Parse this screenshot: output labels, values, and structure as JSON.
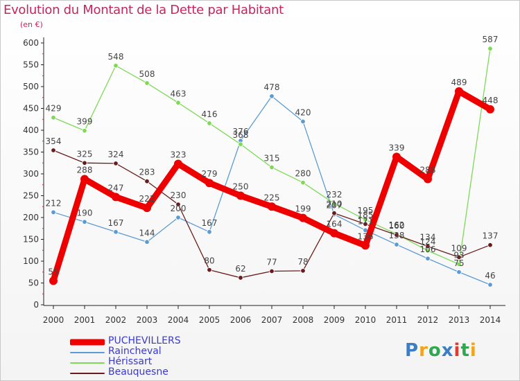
{
  "title": "Evolution du Montant de la Dette par Habitant",
  "subtitle": "(en €)",
  "logo": {
    "text": "Proxiti",
    "colors": [
      "#3c7dc3",
      "#f2a51b",
      "#2fa84f",
      "#3c7dc3",
      "#e5392b",
      "#2fa84f",
      "#f2a51b"
    ]
  },
  "chart_data": {
    "type": "line",
    "x": [
      2000,
      2001,
      2002,
      2003,
      2004,
      2005,
      2006,
      2007,
      2008,
      2009,
      2010,
      2011,
      2012,
      2013,
      2014
    ],
    "ylim": [
      0,
      600
    ],
    "yticks": [
      0,
      50,
      100,
      150,
      200,
      250,
      300,
      350,
      400,
      450,
      500,
      550,
      600
    ],
    "grid": false,
    "legend": "bottom-left",
    "series": [
      {
        "name": "PUCHEVILLERS",
        "color": "#ee0000",
        "values": [
          55,
          288,
          247,
          222,
          323,
          279,
          250,
          225,
          199,
          164,
          136,
          339,
          288,
          489,
          448
        ]
      },
      {
        "name": "Raincheval",
        "color": "#5b9bd5",
        "values": [
          212,
          190,
          167,
          144,
          200,
          167,
          376,
          478,
          420,
          207,
          171,
          138,
          106,
          75,
          46
        ]
      },
      {
        "name": "Hérissart",
        "color": "#7ed957",
        "values": [
          429,
          399,
          548,
          508,
          463,
          416,
          368,
          315,
          280,
          232,
          195,
          162,
          124,
          93,
          587
        ]
      },
      {
        "name": "Beauquesne",
        "color": "#6b1b1b",
        "values": [
          354,
          325,
          324,
          283,
          230,
          80,
          62,
          77,
          78,
          210,
          185,
          160,
          134,
          109,
          137
        ]
      }
    ]
  }
}
